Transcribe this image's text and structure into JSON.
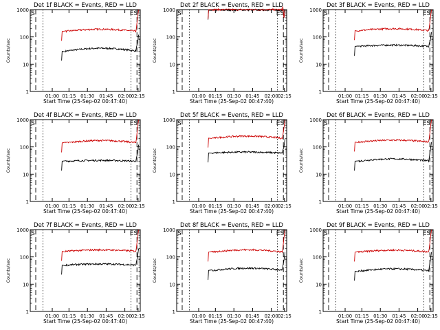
{
  "figure": {
    "background": "#ffffff"
  },
  "colors": {
    "events": "#000000",
    "lld": "#cc0000",
    "axes": "#000000"
  },
  "chart_data": [
    {
      "type": "line",
      "title": "Det 1f BLACK = Events, RED = LLD",
      "xlabel": "Start Time (25-Sep-02 00:47:40)",
      "ylabel": "Counts/sec",
      "y_scale": "log",
      "ylim": [
        1,
        1000
      ],
      "grid": false,
      "x_ticks": [
        "01:00",
        "01:15",
        "01:30",
        "01:45",
        "02:00",
        "02:15"
      ],
      "y_ticks": [
        "1",
        "10",
        "100",
        "1000"
      ],
      "markers": {
        "start_label": "S",
        "end_labels": "ES"
      },
      "series": [
        {
          "color": "#000000",
          "level_start": 30,
          "level_mid": 38,
          "level_end": 32,
          "spike_to": 120
        },
        {
          "color": "#cc0000",
          "level_start": 160,
          "level_mid": 190,
          "level_end": 165,
          "spike_to": 1000
        }
      ]
    },
    {
      "type": "line",
      "title": "Det 2f BLACK = Events, RED = LLD",
      "xlabel": "Start Time (25-Sep-02 00:47:40)",
      "ylabel": "Counts/sec",
      "y_scale": "log",
      "ylim": [
        1,
        1000
      ],
      "grid": false,
      "x_ticks": [
        "01:00",
        "01:15",
        "01:30",
        "01:45",
        "02:00",
        "02:15"
      ],
      "y_ticks": [
        "1",
        "10",
        "100",
        "1000"
      ],
      "markers": {
        "start_label": "S",
        "end_labels": "ES"
      },
      "series": [
        {
          "color": "#000000",
          "level_start": 950,
          "level_mid": 970,
          "level_end": 960,
          "spike_to": 1000
        },
        {
          "color": "#cc0000",
          "level_start": 1000,
          "level_mid": 1000,
          "level_end": 1000,
          "spike_to": 1000
        }
      ]
    },
    {
      "type": "line",
      "title": "Det 3f BLACK = Events, RED = LLD",
      "xlabel": "Start Time (25-Sep-02 00:47:40)",
      "ylabel": "Counts/sec",
      "y_scale": "log",
      "ylim": [
        1,
        1000
      ],
      "grid": false,
      "x_ticks": [
        "01:00",
        "01:15",
        "01:30",
        "01:45",
        "02:00",
        "02:15"
      ],
      "y_ticks": [
        "1",
        "10",
        "100",
        "1000"
      ],
      "markers": {
        "start_label": "S",
        "end_labels": "ES"
      },
      "series": [
        {
          "color": "#000000",
          "level_start": 45,
          "level_mid": 50,
          "level_end": 45,
          "spike_to": 150
        },
        {
          "color": "#cc0000",
          "level_start": 170,
          "level_mid": 200,
          "level_end": 170,
          "spike_to": 1000
        }
      ]
    },
    {
      "type": "line",
      "title": "Det 4f BLACK = Events, RED = LLD",
      "xlabel": "Start Time (25-Sep-02 00:47:40)",
      "ylabel": "Counts/sec",
      "y_scale": "log",
      "ylim": [
        1,
        1000
      ],
      "grid": false,
      "x_ticks": [
        "01:00",
        "01:15",
        "01:30",
        "01:45",
        "02:00",
        "02:15"
      ],
      "y_ticks": [
        "1",
        "10",
        "100",
        "1000"
      ],
      "markers": {
        "start_label": "S",
        "end_labels": "ES"
      },
      "series": [
        {
          "color": "#000000",
          "level_start": 30,
          "level_mid": 32,
          "level_end": 30,
          "spike_to": 120
        },
        {
          "color": "#cc0000",
          "level_start": 140,
          "level_mid": 170,
          "level_end": 150,
          "spike_to": 1000
        }
      ]
    },
    {
      "type": "line",
      "title": "Det 5f BLACK = Events, RED = LLD",
      "xlabel": "Start Time (25-Sep-02 00:47:40)",
      "ylabel": "Counts/sec",
      "y_scale": "log",
      "ylim": [
        1,
        1000
      ],
      "grid": false,
      "x_ticks": [
        "01:00",
        "01:15",
        "01:30",
        "01:45",
        "02:00",
        "02:15"
      ],
      "y_ticks": [
        "1",
        "10",
        "100",
        "1000"
      ],
      "markers": {
        "start_label": "S",
        "end_labels": "ES"
      },
      "series": [
        {
          "color": "#000000",
          "level_start": 60,
          "level_mid": 65,
          "level_end": 58,
          "spike_to": 200
        },
        {
          "color": "#cc0000",
          "level_start": 210,
          "level_mid": 250,
          "level_end": 200,
          "spike_to": 1000
        }
      ]
    },
    {
      "type": "line",
      "title": "Det 6f BLACK = Events, RED = LLD",
      "xlabel": "Start Time (25-Sep-02 00:47:40)",
      "ylabel": "Counts/sec",
      "y_scale": "log",
      "ylim": [
        1,
        1000
      ],
      "grid": false,
      "x_ticks": [
        "01:00",
        "01:15",
        "01:30",
        "01:45",
        "02:00",
        "02:15"
      ],
      "y_ticks": [
        "1",
        "10",
        "100",
        "1000"
      ],
      "markers": {
        "start_label": "S",
        "end_labels": "ES"
      },
      "series": [
        {
          "color": "#000000",
          "level_start": 30,
          "level_mid": 36,
          "level_end": 32,
          "spike_to": 150
        },
        {
          "color": "#cc0000",
          "level_start": 150,
          "level_mid": 175,
          "level_end": 160,
          "spike_to": 1000
        }
      ]
    },
    {
      "type": "line",
      "title": "Det 7f BLACK = Events, RED = LLD",
      "xlabel": "Start Time (25-Sep-02 00:47:40)",
      "ylabel": "Counts/sec",
      "y_scale": "log",
      "ylim": [
        1,
        1000
      ],
      "grid": false,
      "x_ticks": [
        "01:00",
        "01:15",
        "01:30",
        "01:45",
        "02:00",
        "02:15"
      ],
      "y_ticks": [
        "1",
        "10",
        "100",
        "1000"
      ],
      "markers": {
        "start_label": "S",
        "end_labels": "ES"
      },
      "series": [
        {
          "color": "#000000",
          "level_start": 50,
          "level_mid": 55,
          "level_end": 50,
          "spike_to": 200
        },
        {
          "color": "#cc0000",
          "level_start": 160,
          "level_mid": 180,
          "level_end": 165,
          "spike_to": 1000
        }
      ]
    },
    {
      "type": "line",
      "title": "Det 8f BLACK = Events, RED = LLD",
      "xlabel": "Start Time (25-Sep-02 00:47:40)",
      "ylabel": "Counts/sec",
      "y_scale": "log",
      "ylim": [
        1,
        1000
      ],
      "grid": false,
      "x_ticks": [
        "01:00",
        "01:15",
        "01:30",
        "01:45",
        "02:00",
        "02:15"
      ],
      "y_ticks": [
        "1",
        "10",
        "100",
        "1000"
      ],
      "markers": {
        "start_label": "S",
        "end_labels": "ES"
      },
      "series": [
        {
          "color": "#000000",
          "level_start": 32,
          "level_mid": 38,
          "level_end": 35,
          "spike_to": 150
        },
        {
          "color": "#cc0000",
          "level_start": 150,
          "level_mid": 180,
          "level_end": 160,
          "spike_to": 1000
        }
      ]
    },
    {
      "type": "line",
      "title": "Det 9f BLACK = Events, RED = LLD",
      "xlabel": "Start Time (25-Sep-02 00:47:40)",
      "ylabel": "Counts/sec",
      "y_scale": "log",
      "ylim": [
        1,
        1000
      ],
      "grid": false,
      "x_ticks": [
        "01:00",
        "01:15",
        "01:30",
        "01:45",
        "02:00",
        "02:15"
      ],
      "y_ticks": [
        "1",
        "10",
        "100",
        "1000"
      ],
      "markers": {
        "start_label": "S",
        "end_labels": "ES"
      },
      "series": [
        {
          "color": "#000000",
          "level_start": 30,
          "level_mid": 36,
          "level_end": 33,
          "spike_to": 150
        },
        {
          "color": "#cc0000",
          "level_start": 150,
          "level_mid": 175,
          "level_end": 160,
          "spike_to": 1000
        }
      ]
    }
  ]
}
